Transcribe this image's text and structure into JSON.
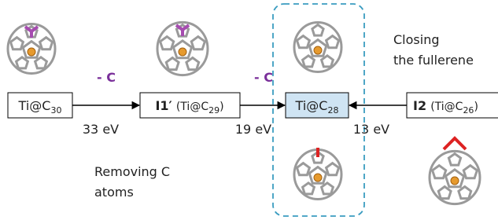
{
  "nodes": [
    {
      "formula": "Ti@C",
      "sub": "30"
    },
    {
      "label": "I1′",
      "prefix": "(Ti@C",
      "sub": "29",
      "suffix": ")"
    },
    {
      "formula": "Ti@C",
      "sub": "28"
    },
    {
      "label": "I2",
      "prefix": "(Ti@C",
      "sub": "26",
      "suffix": ")"
    }
  ],
  "edges": [
    {
      "step": "- C",
      "energy": "33 eV"
    },
    {
      "step": "- C",
      "energy": "19 eV"
    },
    {
      "energy": "13 eV"
    }
  ],
  "notes": {
    "closing": [
      "Closing",
      "the fullerene"
    ],
    "removing": [
      "Removing C",
      "atoms"
    ]
  }
}
